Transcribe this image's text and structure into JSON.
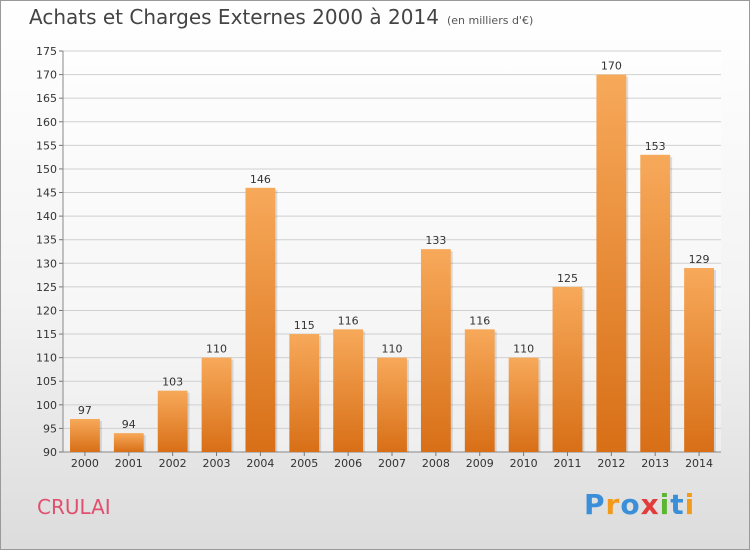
{
  "header": {
    "title": "Achats et Charges Externes 2000 à 2014",
    "subtitle": "(en milliers d'€)"
  },
  "footer": {
    "place": "CRULAI",
    "logo_text": "Proxiti",
    "logo_letters": [
      {
        "ch": "P",
        "color": "#3a8fd8"
      },
      {
        "ch": "r",
        "color": "#f29a1c"
      },
      {
        "ch": "o",
        "color": "#3a8fd8"
      },
      {
        "ch": "x",
        "color": "#e23b3b"
      },
      {
        "ch": "i",
        "color": "#5cb531"
      },
      {
        "ch": "t",
        "color": "#3a8fd8"
      },
      {
        "ch": "i",
        "color": "#f29a1c"
      }
    ]
  },
  "colors": {
    "bar_top": "#f7a95a",
    "bar_bottom": "#d86f17",
    "grid": "#d0d0d0",
    "axis_text": "#333333"
  },
  "chart_data": {
    "type": "bar",
    "title": "Achats et Charges Externes 2000 à 2014",
    "subtitle": "(en milliers d'€)",
    "categories": [
      "2000",
      "2001",
      "2002",
      "2003",
      "2004",
      "2005",
      "2006",
      "2007",
      "2008",
      "2009",
      "2010",
      "2011",
      "2012",
      "2013",
      "2014"
    ],
    "values": [
      97,
      94,
      103,
      110,
      146,
      115,
      116,
      110,
      133,
      116,
      110,
      125,
      170,
      153,
      129
    ],
    "ylim": [
      90,
      175
    ],
    "yticks": [
      90,
      95,
      100,
      105,
      110,
      115,
      120,
      125,
      130,
      135,
      140,
      145,
      150,
      155,
      160,
      165,
      170,
      175
    ],
    "grid": true,
    "data_labels": true
  }
}
